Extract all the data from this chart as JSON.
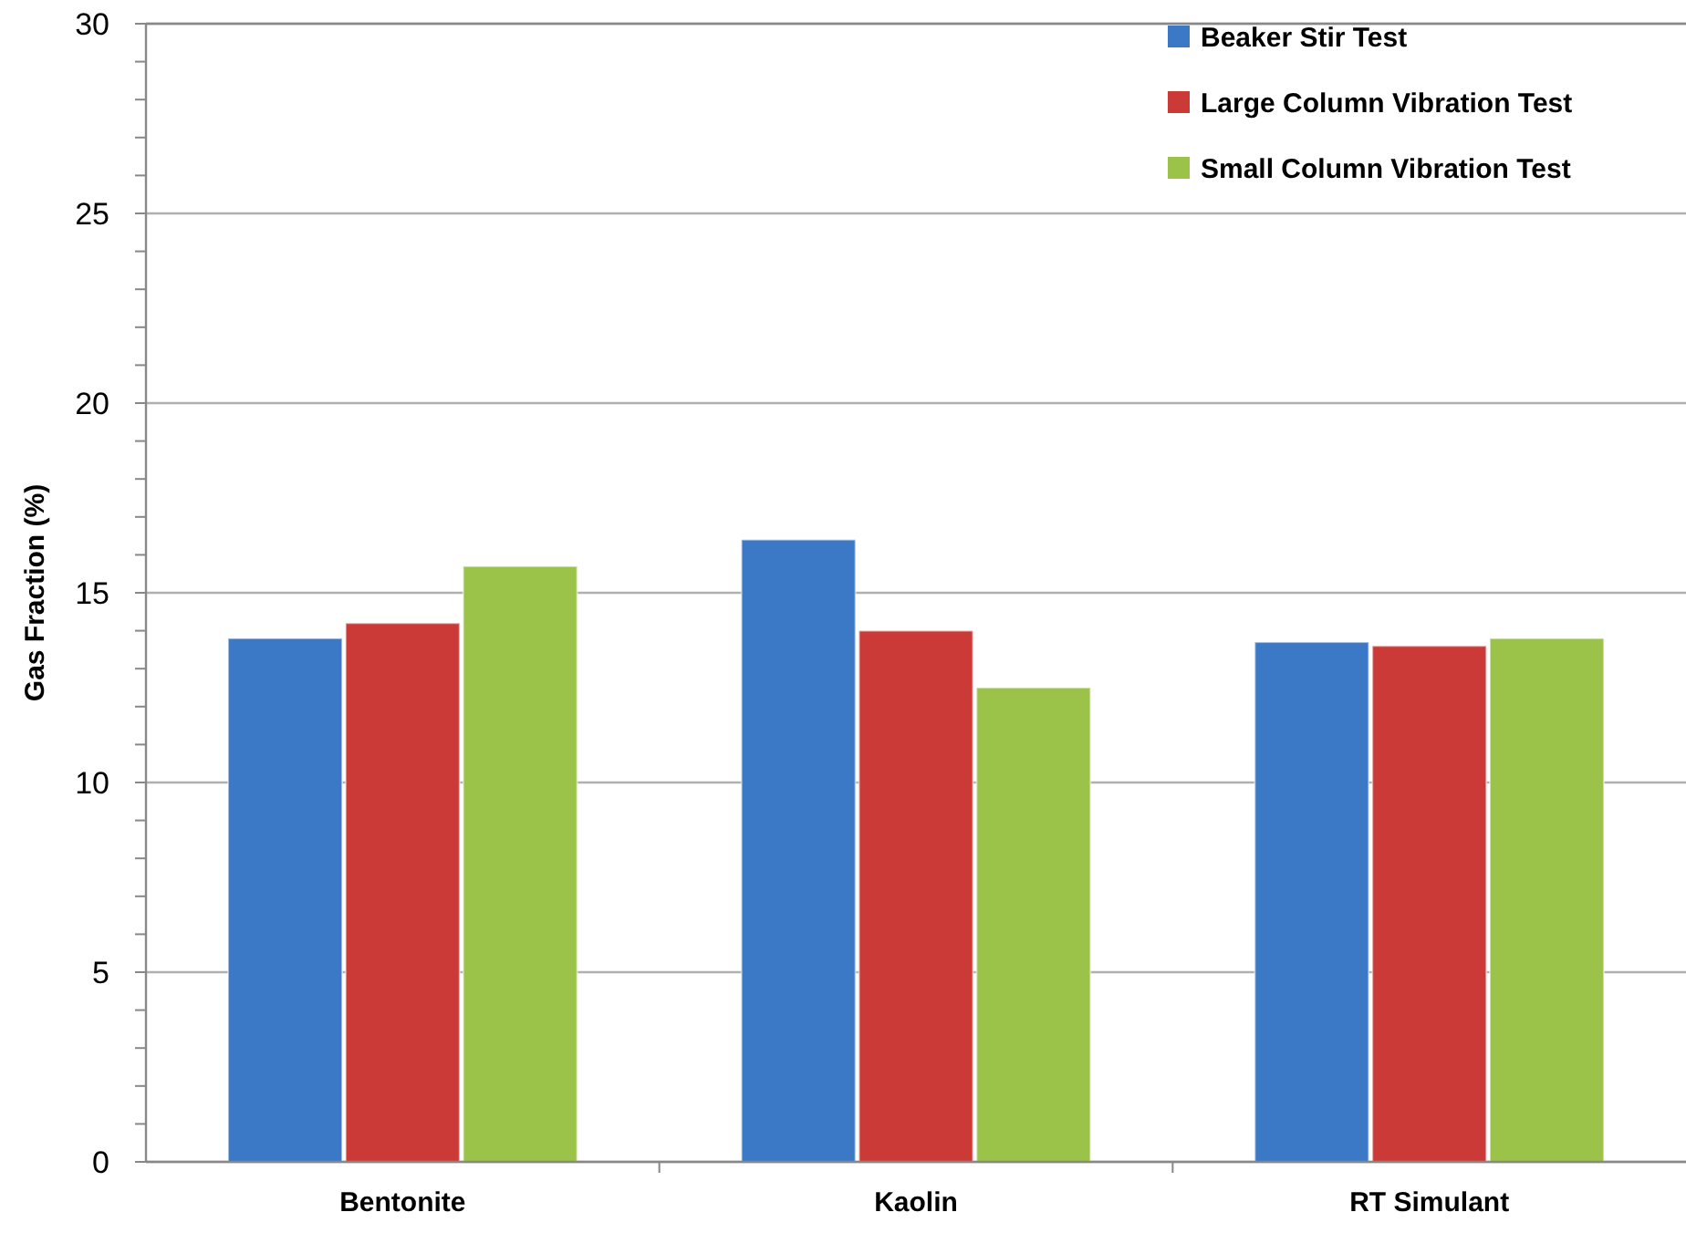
{
  "chart_data": {
    "type": "bar",
    "ylabel": "Gas Fraction (%)",
    "categories": [
      "Bentonite",
      "Kaolin",
      "RT Simulant"
    ],
    "series": [
      {
        "name": "Beaker Stir Test",
        "color": "#3b78c6",
        "values": [
          13.8,
          16.4,
          13.7
        ]
      },
      {
        "name": "Large Column Vibration Test",
        "color": "#cc3a37",
        "values": [
          14.2,
          14.0,
          13.6
        ]
      },
      {
        "name": "Small Column Vibration Test",
        "color": "#9bc34a",
        "values": [
          15.7,
          12.5,
          13.8
        ]
      }
    ],
    "ylim": [
      0,
      30
    ],
    "yticks": [
      0,
      {
        "value": 1,
        "label": null
      },
      {
        "value": 2,
        "label": null
      },
      {
        "value": 3,
        "label": null
      },
      {
        "value": 4,
        "label": null
      },
      5,
      {
        "value": 6,
        "label": null
      },
      {
        "value": 7,
        "label": null
      },
      {
        "value": 8,
        "label": null
      },
      {
        "value": 9,
        "label": null
      },
      10,
      {
        "value": 11,
        "label": null
      },
      {
        "value": 12,
        "label": null
      },
      {
        "value": 13,
        "label": null
      },
      {
        "value": 14,
        "label": null
      },
      15,
      {
        "value": 16,
        "label": null
      },
      {
        "value": 17,
        "label": null
      },
      {
        "value": 18,
        "label": null
      },
      {
        "value": 19,
        "label": null
      },
      20,
      {
        "value": 21,
        "label": null
      },
      {
        "value": 22,
        "label": null
      },
      {
        "value": 23,
        "label": null
      },
      {
        "value": 24,
        "label": null
      },
      25,
      {
        "value": 26,
        "label": null
      },
      {
        "value": 27,
        "label": null
      },
      {
        "value": 28,
        "label": null
      },
      {
        "value": 29,
        "label": null
      },
      30
    ],
    "grid": "y",
    "legend": "top right"
  }
}
